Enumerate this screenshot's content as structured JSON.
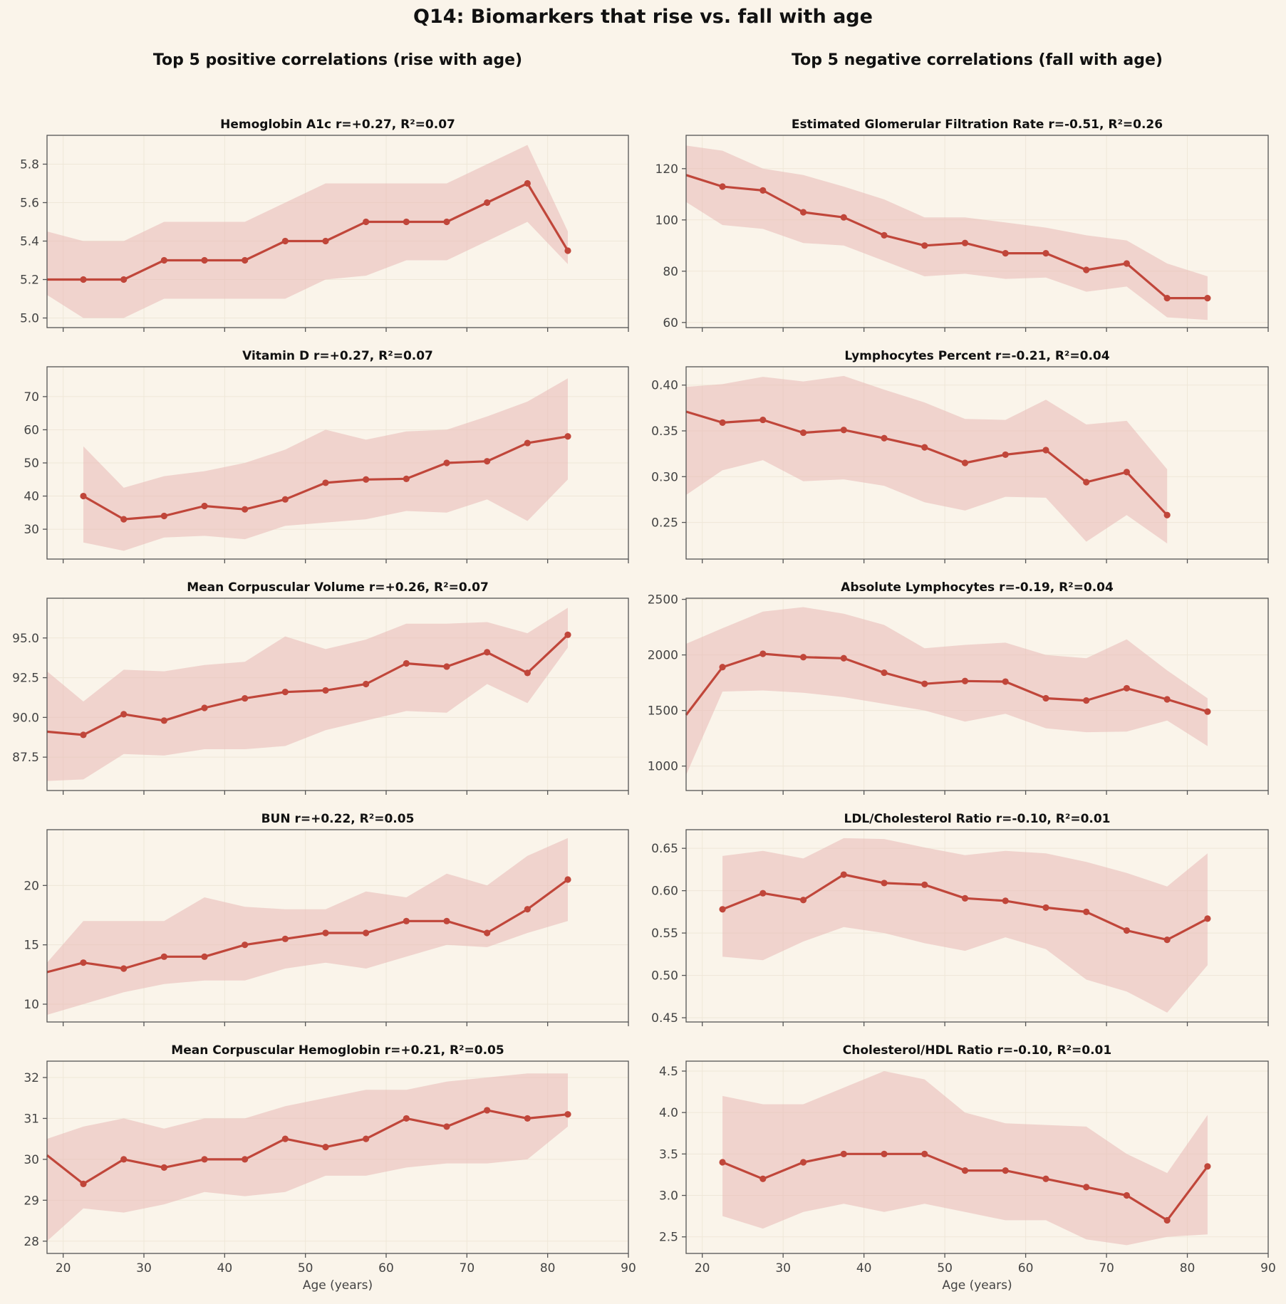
{
  "title": "Q14: Biomarkers that rise vs. fall with age",
  "left_column_title": "Top 5 positive correlations (rise with age)",
  "right_column_title": "Top 5 negative correlations (fall with age)",
  "colors": {
    "line": "#c0463a",
    "band": "#e8b8b4",
    "background": "#faf4ea"
  },
  "chart_data": [
    {
      "type": "line",
      "column": "left",
      "row": 0,
      "title": "Hemoglobin A1c   r=+0.27, R²=0.07",
      "xlabel": "",
      "ylabel": "",
      "xlim": [
        18,
        90
      ],
      "ylim": [
        4.95,
        5.95
      ],
      "xticks": [
        20,
        30,
        40,
        50,
        60,
        70,
        80,
        90
      ],
      "yticks": [
        5.0,
        5.2,
        5.4,
        5.6,
        5.8
      ],
      "ytick_labels": [
        "5.0",
        "5.2",
        "5.4",
        "5.6",
        "5.8"
      ],
      "grid": true,
      "x": [
        18,
        22.5,
        27.5,
        32.5,
        37.5,
        42.5,
        47.5,
        52.5,
        57.5,
        62.5,
        67.5,
        72.5,
        77.5,
        82.5
      ],
      "y": [
        5.2,
        5.2,
        5.2,
        5.3,
        5.3,
        5.3,
        5.4,
        5.4,
        5.5,
        5.5,
        5.5,
        5.6,
        5.7,
        5.35
      ],
      "band_low": [
        5.12,
        5.0,
        5.0,
        5.1,
        5.1,
        5.1,
        5.1,
        5.2,
        5.22,
        5.3,
        5.3,
        5.4,
        5.5,
        5.28
      ],
      "band_high": [
        5.45,
        5.4,
        5.4,
        5.5,
        5.5,
        5.5,
        5.6,
        5.7,
        5.7,
        5.7,
        5.7,
        5.8,
        5.9,
        5.45
      ]
    },
    {
      "type": "line",
      "column": "left",
      "row": 1,
      "title": "Vitamin D   r=+0.27, R²=0.07",
      "xlabel": "",
      "ylabel": "",
      "xlim": [
        18,
        90
      ],
      "ylim": [
        21,
        79
      ],
      "xticks": [
        20,
        30,
        40,
        50,
        60,
        70,
        80,
        90
      ],
      "yticks": [
        30,
        40,
        50,
        60,
        70
      ],
      "ytick_labels": [
        "30",
        "40",
        "50",
        "60",
        "70"
      ],
      "grid": true,
      "x": [
        22.5,
        27.5,
        32.5,
        37.5,
        42.5,
        47.5,
        52.5,
        57.5,
        62.5,
        67.5,
        72.5,
        77.5,
        82.5
      ],
      "y": [
        40,
        33,
        34,
        37,
        36,
        39,
        44,
        45,
        45.2,
        50,
        50.5,
        56,
        58
      ],
      "band_low": [
        26,
        23.5,
        27.5,
        28,
        27,
        31,
        32,
        33,
        35.5,
        35,
        39,
        32.5,
        45
      ],
      "band_high": [
        55,
        42.5,
        46,
        47.5,
        50,
        54,
        60,
        57,
        59.5,
        60,
        64,
        68.5,
        75.5
      ]
    },
    {
      "type": "line",
      "column": "left",
      "row": 2,
      "title": "Mean Corpuscular Volume   r=+0.26, R²=0.07",
      "xlabel": "",
      "ylabel": "",
      "xlim": [
        18,
        90
      ],
      "ylim": [
        85.4,
        97.5
      ],
      "xticks": [
        20,
        30,
        40,
        50,
        60,
        70,
        80,
        90
      ],
      "yticks": [
        87.5,
        90.0,
        92.5,
        95.0
      ],
      "ytick_labels": [
        "87.5",
        "90.0",
        "92.5",
        "95.0"
      ],
      "grid": true,
      "x": [
        18,
        22.5,
        27.5,
        32.5,
        37.5,
        42.5,
        47.5,
        52.5,
        57.5,
        62.5,
        67.5,
        72.5,
        77.5,
        82.5
      ],
      "y": [
        89.1,
        88.9,
        90.2,
        89.8,
        90.6,
        91.2,
        91.6,
        91.7,
        92.1,
        93.4,
        93.2,
        94.1,
        92.8,
        95.2
      ],
      "band_low": [
        86.0,
        86.1,
        87.7,
        87.6,
        88.0,
        88.0,
        88.2,
        89.2,
        89.8,
        90.4,
        90.3,
        92.1,
        90.9,
        94.4
      ],
      "band_high": [
        92.9,
        91.0,
        93.0,
        92.9,
        93.3,
        93.5,
        95.1,
        94.3,
        94.9,
        95.9,
        95.9,
        96.0,
        95.3,
        96.9
      ]
    },
    {
      "type": "line",
      "column": "left",
      "row": 3,
      "title": "BUN   r=+0.22, R²=0.05",
      "xlabel": "",
      "ylabel": "",
      "xlim": [
        18,
        90
      ],
      "ylim": [
        8.5,
        24.7
      ],
      "xticks": [
        20,
        30,
        40,
        50,
        60,
        70,
        80,
        90
      ],
      "yticks": [
        10,
        15,
        20
      ],
      "ytick_labels": [
        "10",
        "15",
        "20"
      ],
      "grid": true,
      "x": [
        18,
        22.5,
        27.5,
        32.5,
        37.5,
        42.5,
        47.5,
        52.5,
        57.5,
        62.5,
        67.5,
        72.5,
        77.5,
        82.5
      ],
      "y": [
        12.7,
        13.5,
        13,
        14,
        14,
        15,
        15.5,
        16,
        16,
        17,
        17,
        16,
        18,
        20.5
      ],
      "band_low": [
        9.1,
        10,
        11,
        11.7,
        12,
        12,
        13,
        13.5,
        13,
        14,
        15,
        14.8,
        16,
        17
      ],
      "band_high": [
        13.5,
        17,
        17,
        17,
        19,
        18.2,
        18,
        18,
        19.5,
        19,
        21,
        20,
        22.5,
        24
      ]
    },
    {
      "type": "line",
      "column": "left",
      "row": 4,
      "title": "Mean Corpuscular Hemoglobin   r=+0.21, R²=0.05",
      "xlabel": "Age (years)",
      "ylabel": "",
      "xlim": [
        18,
        90
      ],
      "ylim": [
        27.7,
        32.4
      ],
      "xticks": [
        20,
        30,
        40,
        50,
        60,
        70,
        80,
        90
      ],
      "xtick_labels": [
        "20",
        "30",
        "40",
        "50",
        "60",
        "70",
        "80",
        "90"
      ],
      "yticks": [
        28,
        29,
        30,
        31,
        32
      ],
      "ytick_labels": [
        "28",
        "29",
        "30",
        "31",
        "32"
      ],
      "grid": true,
      "x": [
        18,
        22.5,
        27.5,
        32.5,
        37.5,
        42.5,
        47.5,
        52.5,
        57.5,
        62.5,
        67.5,
        72.5,
        77.5,
        82.5
      ],
      "y": [
        30.1,
        29.4,
        30,
        29.8,
        30,
        30,
        30.5,
        30.3,
        30.5,
        31,
        30.8,
        31.2,
        31,
        31.1
      ],
      "band_low": [
        28.0,
        28.8,
        28.7,
        28.9,
        29.2,
        29.1,
        29.2,
        29.6,
        29.6,
        29.8,
        29.9,
        29.9,
        30.0,
        30.8
      ],
      "band_high": [
        30.5,
        30.8,
        31.0,
        30.75,
        31.0,
        31.0,
        31.3,
        31.5,
        31.7,
        31.7,
        31.9,
        32.0,
        32.1,
        32.1
      ]
    },
    {
      "type": "line",
      "column": "right",
      "row": 0,
      "title": "Estimated Glomerular Filtration Rate   r=-0.51, R²=0.26",
      "xlabel": "",
      "ylabel": "",
      "xlim": [
        18,
        90
      ],
      "ylim": [
        58,
        133
      ],
      "xticks": [
        20,
        30,
        40,
        50,
        60,
        70,
        80,
        90
      ],
      "yticks": [
        60,
        80,
        100,
        120
      ],
      "ytick_labels": [
        "60",
        "80",
        "100",
        "120"
      ],
      "grid": true,
      "x": [
        18,
        22.5,
        27.5,
        32.5,
        37.5,
        42.5,
        47.5,
        52.5,
        57.5,
        62.5,
        67.5,
        72.5,
        77.5,
        82.5
      ],
      "y": [
        117.5,
        113,
        111.5,
        103,
        101,
        94,
        90,
        91,
        87,
        87,
        80.5,
        83,
        69.5,
        69.5
      ],
      "band_low": [
        107,
        98,
        96.5,
        91,
        90,
        84,
        78,
        79,
        77,
        77.5,
        72,
        74,
        62,
        61
      ],
      "band_high": [
        129,
        127,
        120,
        117.5,
        113,
        108,
        101,
        101,
        99,
        97,
        94,
        92,
        83,
        78
      ]
    },
    {
      "type": "line",
      "column": "right",
      "row": 1,
      "title": "Lymphocytes Percent   r=-0.21, R²=0.04",
      "xlabel": "",
      "ylabel": "",
      "xlim": [
        18,
        90
      ],
      "ylim": [
        0.21,
        0.42
      ],
      "xticks": [
        20,
        30,
        40,
        50,
        60,
        70,
        80,
        90
      ],
      "yticks": [
        0.25,
        0.3,
        0.35,
        0.4
      ],
      "ytick_labels": [
        "0.25",
        "0.30",
        "0.35",
        "0.40"
      ],
      "grid": true,
      "x": [
        18,
        22.5,
        27.5,
        32.5,
        37.5,
        42.5,
        47.5,
        52.5,
        57.5,
        62.5,
        67.5,
        72.5,
        77.5
      ],
      "y": [
        0.371,
        0.359,
        0.362,
        0.348,
        0.351,
        0.342,
        0.332,
        0.315,
        0.324,
        0.329,
        0.294,
        0.305,
        0.258
      ],
      "band_low": [
        0.28,
        0.307,
        0.318,
        0.295,
        0.297,
        0.29,
        0.272,
        0.263,
        0.278,
        0.277,
        0.229,
        0.258,
        0.227
      ],
      "band_high": [
        0.398,
        0.401,
        0.409,
        0.404,
        0.41,
        0.395,
        0.381,
        0.363,
        0.362,
        0.384,
        0.357,
        0.361,
        0.308
      ]
    },
    {
      "type": "line",
      "column": "right",
      "row": 2,
      "title": "Absolute Lymphocytes   r=-0.19, R²=0.04",
      "xlabel": "",
      "ylabel": "",
      "xlim": [
        18,
        90
      ],
      "ylim": [
        780,
        2510
      ],
      "xticks": [
        20,
        30,
        40,
        50,
        60,
        70,
        80,
        90
      ],
      "yticks": [
        1000,
        1500,
        2000,
        2500
      ],
      "ytick_labels": [
        "1000",
        "1500",
        "2000",
        "2500"
      ],
      "grid": true,
      "x": [
        18,
        22.5,
        27.5,
        32.5,
        37.5,
        42.5,
        47.5,
        52.5,
        57.5,
        62.5,
        67.5,
        72.5,
        77.5,
        82.5
      ],
      "y": [
        1460,
        1890,
        2010,
        1980,
        1970,
        1840,
        1740,
        1765,
        1760,
        1610,
        1590,
        1700,
        1600,
        1490
      ],
      "band_low": [
        920,
        1670,
        1680,
        1660,
        1620,
        1560,
        1500,
        1400,
        1470,
        1340,
        1305,
        1310,
        1410,
        1180
      ],
      "band_high": [
        2100,
        2240,
        2390,
        2430,
        2370,
        2270,
        2060,
        2090,
        2110,
        2000,
        1970,
        2140,
        1860,
        1610
      ]
    },
    {
      "type": "line",
      "column": "right",
      "row": 3,
      "title": "LDL/Cholesterol Ratio   r=-0.10, R²=0.01",
      "xlabel": "",
      "ylabel": "",
      "xlim": [
        18,
        90
      ],
      "ylim": [
        0.445,
        0.672
      ],
      "xticks": [
        20,
        30,
        40,
        50,
        60,
        70,
        80,
        90
      ],
      "yticks": [
        0.45,
        0.5,
        0.55,
        0.6,
        0.65
      ],
      "ytick_labels": [
        "0.45",
        "0.50",
        "0.55",
        "0.60",
        "0.65"
      ],
      "grid": true,
      "x": [
        22.5,
        27.5,
        32.5,
        37.5,
        42.5,
        47.5,
        52.5,
        57.5,
        62.5,
        67.5,
        72.5,
        77.5,
        82.5
      ],
      "y": [
        0.578,
        0.597,
        0.589,
        0.619,
        0.609,
        0.607,
        0.591,
        0.588,
        0.58,
        0.575,
        0.553,
        0.542,
        0.567
      ],
      "band_low": [
        0.522,
        0.518,
        0.54,
        0.557,
        0.55,
        0.538,
        0.529,
        0.545,
        0.531,
        0.495,
        0.481,
        0.456,
        0.512
      ],
      "band_high": [
        0.641,
        0.647,
        0.638,
        0.662,
        0.661,
        0.651,
        0.642,
        0.647,
        0.644,
        0.634,
        0.621,
        0.605,
        0.644
      ]
    },
    {
      "type": "line",
      "column": "right",
      "row": 4,
      "title": "Cholesterol/HDL Ratio   r=-0.10, R²=0.01",
      "xlabel": "Age (years)",
      "ylabel": "",
      "xlim": [
        18,
        90
      ],
      "ylim": [
        2.3,
        4.62
      ],
      "xticks": [
        20,
        30,
        40,
        50,
        60,
        70,
        80,
        90
      ],
      "xtick_labels": [
        "20",
        "30",
        "40",
        "50",
        "60",
        "70",
        "80",
        "90"
      ],
      "yticks": [
        2.5,
        3.0,
        3.5,
        4.0,
        4.5
      ],
      "ytick_labels": [
        "2.5",
        "3.0",
        "3.5",
        "4.0",
        "4.5"
      ],
      "grid": true,
      "x": [
        22.5,
        27.5,
        32.5,
        37.5,
        42.5,
        47.5,
        52.5,
        57.5,
        62.5,
        67.5,
        72.5,
        77.5,
        82.5
      ],
      "y": [
        3.4,
        3.2,
        3.4,
        3.5,
        3.5,
        3.5,
        3.3,
        3.3,
        3.2,
        3.1,
        3.0,
        2.7,
        3.35
      ],
      "band_low": [
        2.75,
        2.6,
        2.8,
        2.9,
        2.8,
        2.9,
        2.8,
        2.7,
        2.7,
        2.47,
        2.4,
        2.5,
        2.53
      ],
      "band_high": [
        4.2,
        4.1,
        4.1,
        4.3,
        4.5,
        4.4,
        4.0,
        3.87,
        3.85,
        3.83,
        3.5,
        3.27,
        3.97
      ]
    }
  ]
}
